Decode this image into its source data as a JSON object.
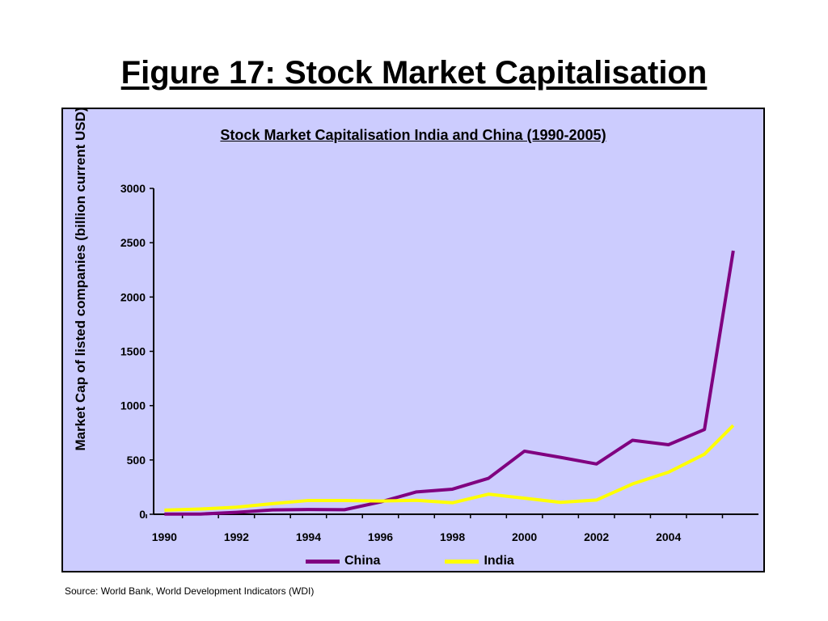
{
  "slide": {
    "title": "Figure 17: Stock Market Capitalisation",
    "source": "Source: World Bank, World Development Indicators (WDI)"
  },
  "chart_data": {
    "type": "line",
    "title": "Stock Market Capitalisation India and China (1990-2005)",
    "xlabel": "",
    "ylabel": "Market Cap of listed companies (billion current USD)",
    "x": [
      1990,
      1991,
      1992,
      1993,
      1994,
      1995,
      1996,
      1997,
      1998,
      1999,
      2000,
      2001,
      2002,
      2003,
      2004,
      2005
    ],
    "x_tick_labels": [
      "1990",
      "1992",
      "1994",
      "1996",
      "1998",
      "2000",
      "2002",
      "2004"
    ],
    "ylim": [
      0,
      3000
    ],
    "y_ticks": [
      0,
      500,
      1000,
      1500,
      2000,
      2500,
      3000
    ],
    "grid": false,
    "legend_position": "bottom",
    "background_color": "#ccccfe",
    "series": [
      {
        "name": "China",
        "color": "#800080",
        "values": [
          2,
          2,
          18,
          40,
          44,
          42,
          113,
          206,
          231,
          331,
          581,
          524,
          463,
          681,
          640,
          780
        ]
      },
      {
        "name": "India",
        "color": "#ffff00",
        "values": [
          38,
          48,
          65,
          98,
          127,
          127,
          122,
          128,
          106,
          185,
          148,
          110,
          131,
          279,
          387,
          553
        ]
      }
    ],
    "final_point": {
      "x": 2005.8,
      "china": 2426,
      "india": 818
    }
  }
}
